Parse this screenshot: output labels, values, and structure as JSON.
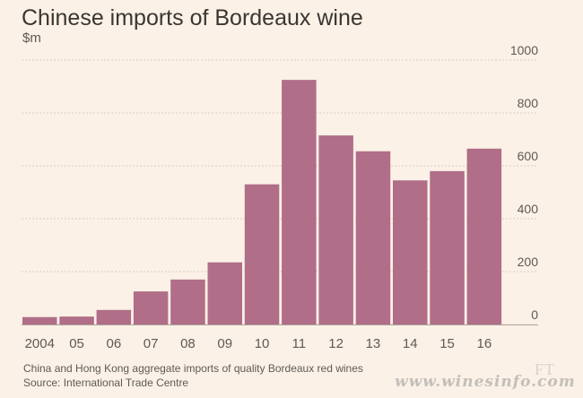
{
  "title": "Chinese imports of Bordeaux wine",
  "unit": "$m",
  "footnote": "China and Hong Kong aggregate imports of quality Bordeaux red wines",
  "source": "Source: International Trade Centre",
  "brand": "FT",
  "watermark": "www.winesinfo.com",
  "colors": {
    "bar": "#b06e88",
    "background": "#fbf1e6",
    "grid": "#d9cdc0",
    "text": "#5f5a55"
  },
  "chart_data": {
    "type": "bar",
    "title": "Chinese imports of Bordeaux wine",
    "ylabel": "$m",
    "xlabel": "",
    "categories": [
      "2004",
      "05",
      "06",
      "07",
      "08",
      "09",
      "10",
      "11",
      "12",
      "13",
      "14",
      "15",
      "16"
    ],
    "values": [
      28,
      30,
      55,
      125,
      170,
      235,
      530,
      925,
      715,
      655,
      545,
      580,
      665
    ],
    "ylim": [
      0,
      1000
    ],
    "yticks": [
      0,
      200,
      400,
      600,
      800,
      1000
    ],
    "grid": true,
    "yaxis_position": "right"
  }
}
